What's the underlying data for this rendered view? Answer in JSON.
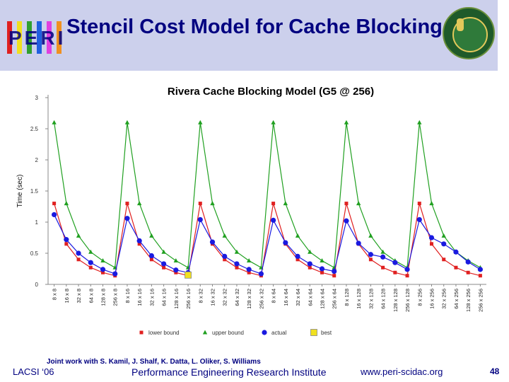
{
  "slide": {
    "title": "Stencil Cost Model for Cache Blocking",
    "logo_text": "PERI",
    "logo_colors": [
      "#e02020",
      "#f0e020",
      "#30a030",
      "#2060e0",
      "#e040e0",
      "#f09020"
    ],
    "credit": "Joint work with S. Kamil, J. Shalf, K. Datta, L. Oliker, S. Williams",
    "footer_left": "LACSI ‘06",
    "footer_center": "Performance Engineering Research Institute",
    "footer_url": "www.peri-scidac.org",
    "page_number": "48",
    "text_color": "#000080",
    "header_color": "#ccd0ec"
  },
  "chart_data": {
    "type": "line",
    "title": "Rivera Cache Blocking Model (G5 @ 256)",
    "xlabel": "",
    "ylabel": "Time (sec)",
    "ylim": [
      0,
      3
    ],
    "yticks": [
      0,
      0.5,
      1,
      1.5,
      2,
      2.5,
      3
    ],
    "grid": false,
    "legend_position": "bottom",
    "categories": [
      "8 x 8",
      "16 x 8",
      "32 x 8",
      "64 x 8",
      "128 x 8",
      "256 x 8",
      "8 x 16",
      "16 x 16",
      "32 x 16",
      "64 x 16",
      "128 x 16",
      "256 x 16",
      "8 x 32",
      "16 x 32",
      "32 x 32",
      "64 x 32",
      "128 x 32",
      "256 x 32",
      "8 x 64",
      "16 x 64",
      "32 x 64",
      "64 x 64",
      "128 x 64",
      "256 x 64",
      "8 x 128",
      "16 x 128",
      "32 x 128",
      "64 x 128",
      "128 x 128",
      "256 x 128",
      "8 x 256",
      "16 x 256",
      "32 x 256",
      "64 x 256",
      "128 x 256",
      "256 x 256"
    ],
    "series": [
      {
        "name": "lower bound",
        "color": "#e02020",
        "marker": "square",
        "values": [
          1.3,
          0.65,
          0.4,
          0.27,
          0.19,
          0.14,
          1.3,
          0.65,
          0.4,
          0.27,
          0.19,
          0.14,
          1.3,
          0.65,
          0.4,
          0.27,
          0.19,
          0.14,
          1.3,
          0.65,
          0.4,
          0.27,
          0.19,
          0.14,
          1.3,
          0.65,
          0.4,
          0.27,
          0.19,
          0.14,
          1.3,
          0.65,
          0.4,
          0.27,
          0.19,
          0.14
        ]
      },
      {
        "name": "upper bound",
        "color": "#20a020",
        "marker": "triangle",
        "values": [
          2.6,
          1.3,
          0.78,
          0.52,
          0.38,
          0.27,
          2.6,
          1.3,
          0.78,
          0.52,
          0.38,
          0.27,
          2.6,
          1.3,
          0.78,
          0.52,
          0.38,
          0.27,
          2.6,
          1.3,
          0.78,
          0.52,
          0.38,
          0.27,
          2.6,
          1.3,
          0.78,
          0.52,
          0.38,
          0.27,
          2.6,
          1.3,
          0.78,
          0.52,
          0.38,
          0.27
        ]
      },
      {
        "name": "actual",
        "color": "#1a1ae0",
        "marker": "circle",
        "values": [
          1.12,
          0.72,
          0.5,
          0.35,
          0.24,
          0.17,
          1.06,
          0.7,
          0.46,
          0.33,
          0.23,
          0.19,
          1.04,
          0.68,
          0.45,
          0.33,
          0.24,
          0.17,
          1.03,
          0.67,
          0.45,
          0.33,
          0.25,
          0.21,
          1.02,
          0.66,
          0.48,
          0.44,
          0.35,
          0.24,
          1.04,
          0.75,
          0.65,
          0.52,
          0.36,
          0.24
        ]
      }
    ],
    "best": {
      "name": "best",
      "color": "#f0e020",
      "marker": "square",
      "category": "256 x 16",
      "value": 0.15
    }
  }
}
